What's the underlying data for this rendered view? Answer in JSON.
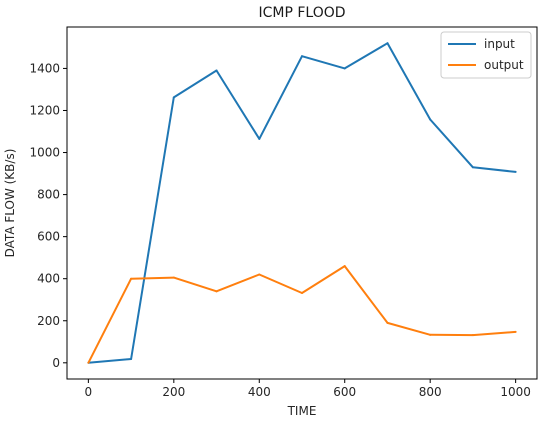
{
  "chart_data": {
    "type": "line",
    "title": "ICMP FLOOD",
    "xlabel": "TIME",
    "ylabel": "DATA FLOW (KB/s)",
    "xlim": [
      -50,
      1050
    ],
    "ylim": [
      -77,
      1597
    ],
    "xticks": [
      0,
      200,
      400,
      600,
      800,
      1000
    ],
    "yticks": [
      0,
      200,
      400,
      600,
      800,
      1000,
      1200,
      1400
    ],
    "x": [
      0,
      100,
      200,
      300,
      400,
      500,
      600,
      700,
      800,
      900,
      1000
    ],
    "series": [
      {
        "name": "input",
        "color": "#1f77b4",
        "values": [
          0,
          18,
          1262,
          1390,
          1065,
          1458,
          1400,
          1520,
          1157,
          930,
          908
        ]
      },
      {
        "name": "output",
        "color": "#ff7f0e",
        "values": [
          0,
          400,
          405,
          340,
          420,
          332,
          460,
          190,
          133,
          132,
          147
        ]
      }
    ],
    "legend": "top-right",
    "grid": false
  }
}
